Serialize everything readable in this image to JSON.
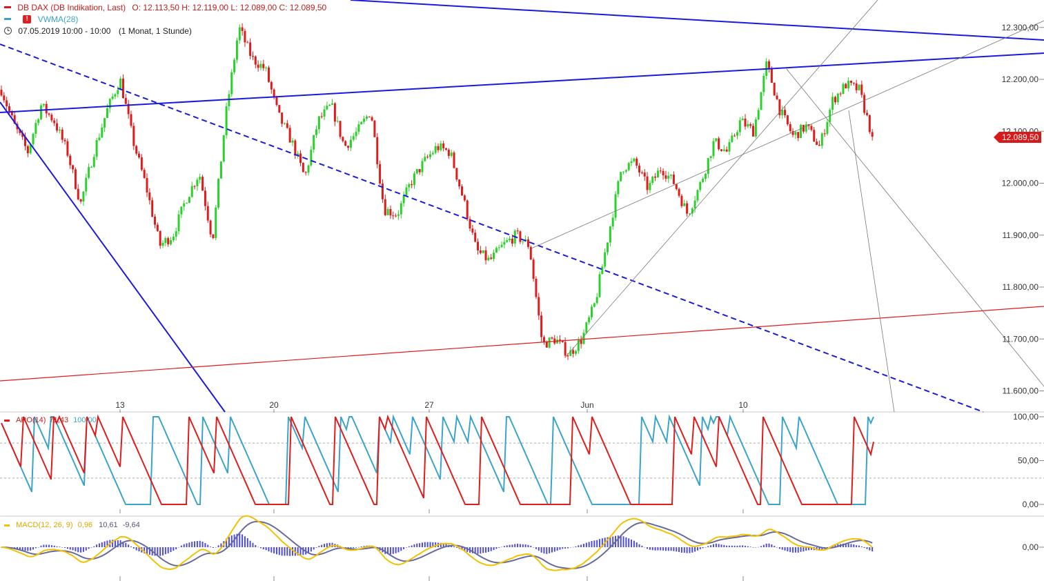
{
  "header": {
    "instrument": "DB DAX (DB Indikation, Last)",
    "ohlc": "O: 12.113,50  H: 12.119,00  L: 12.089,00  C: 12.089,50",
    "indicator": "VWMA(28)",
    "alert_icon": "alert-icon",
    "datetime": "07.05.2019 10:00 - 10:00",
    "range": "(1 Monat, 1 Stunde)",
    "clock_icon": "clock-icon"
  },
  "colors": {
    "up": "#2bd12b",
    "down": "#e01b1b",
    "trendline": "#1a1adb",
    "support": "#e01b1b",
    "thin_line": "#777777",
    "aroon_up": "#e01b1b",
    "aroon_down": "#3aa3c9",
    "macd": "#f2c100",
    "signal": "#6a6a9a",
    "hist": "#4c4cd6",
    "price_tag": "#d9181a"
  },
  "price_axis": {
    "ticks": [
      "12.300,00",
      "12.200,00",
      "12.100,00",
      "12.000,00",
      "11.900,00",
      "11.800,00",
      "11.700,00",
      "11.600,00"
    ],
    "tick_values": [
      12300,
      12200,
      12100,
      12000,
      11900,
      11800,
      11700,
      11600
    ],
    "last_price": "12.089,50"
  },
  "date_axis": {
    "labels": [
      "13",
      "20",
      "27",
      "Jun",
      "10"
    ]
  },
  "aroon": {
    "label": "ARO(14)",
    "value_up": "71,43",
    "value_down": "100,00",
    "ticks": [
      "100,00",
      "50,00",
      "0,00"
    ]
  },
  "macd": {
    "label": "MACD(12, 26, 9)",
    "value_macd": "0,96",
    "value_signal": "10,61",
    "value_hist": "-9,64",
    "ticks": [
      "0,00"
    ]
  },
  "chart_data": [
    {
      "type": "candlestick",
      "title": "DB DAX (DB Indikation, Last)",
      "interval": "1 Stunde",
      "period": "1 Monat",
      "ylim": [
        11550,
        12330
      ],
      "x_labels": [
        "13",
        "20",
        "27",
        "Jun",
        "10"
      ],
      "close_path": [
        12180,
        12110,
        12060,
        12150,
        12120,
        12060,
        11960,
        12060,
        12140,
        12200,
        12080,
        11990,
        11880,
        11900,
        11970,
        12020,
        11890,
        12130,
        12300,
        12240,
        12220,
        12130,
        12080,
        12010,
        12120,
        12150,
        12070,
        12100,
        12140,
        11950,
        11940,
        12000,
        12040,
        12070,
        12060,
        11970,
        11870,
        11850,
        11880,
        11900,
        11880,
        11690,
        11700,
        11670,
        11700,
        11770,
        11900,
        12030,
        12040,
        11990,
        12030,
        12000,
        11940,
        12000,
        12080,
        12060,
        12120,
        12100,
        12230,
        12140,
        12090,
        12110,
        12070,
        12160,
        12190,
        12180,
        12089.5
      ],
      "annotations": [
        "trendline",
        "trendline",
        "trendline (dashed)",
        "support line",
        "fan lines"
      ]
    },
    {
      "type": "line",
      "title": "ARO(14)",
      "ylim": [
        0,
        100
      ],
      "series": [
        {
          "name": "Aroon Up",
          "last": 71.43
        },
        {
          "name": "Aroon Down",
          "last": 100.0
        }
      ]
    },
    {
      "type": "line",
      "title": "MACD(12, 26, 9)",
      "series": [
        {
          "name": "MACD",
          "last": 0.96
        },
        {
          "name": "Signal",
          "last": 10.61
        },
        {
          "name": "Histogram",
          "last": -9.64
        }
      ]
    }
  ]
}
